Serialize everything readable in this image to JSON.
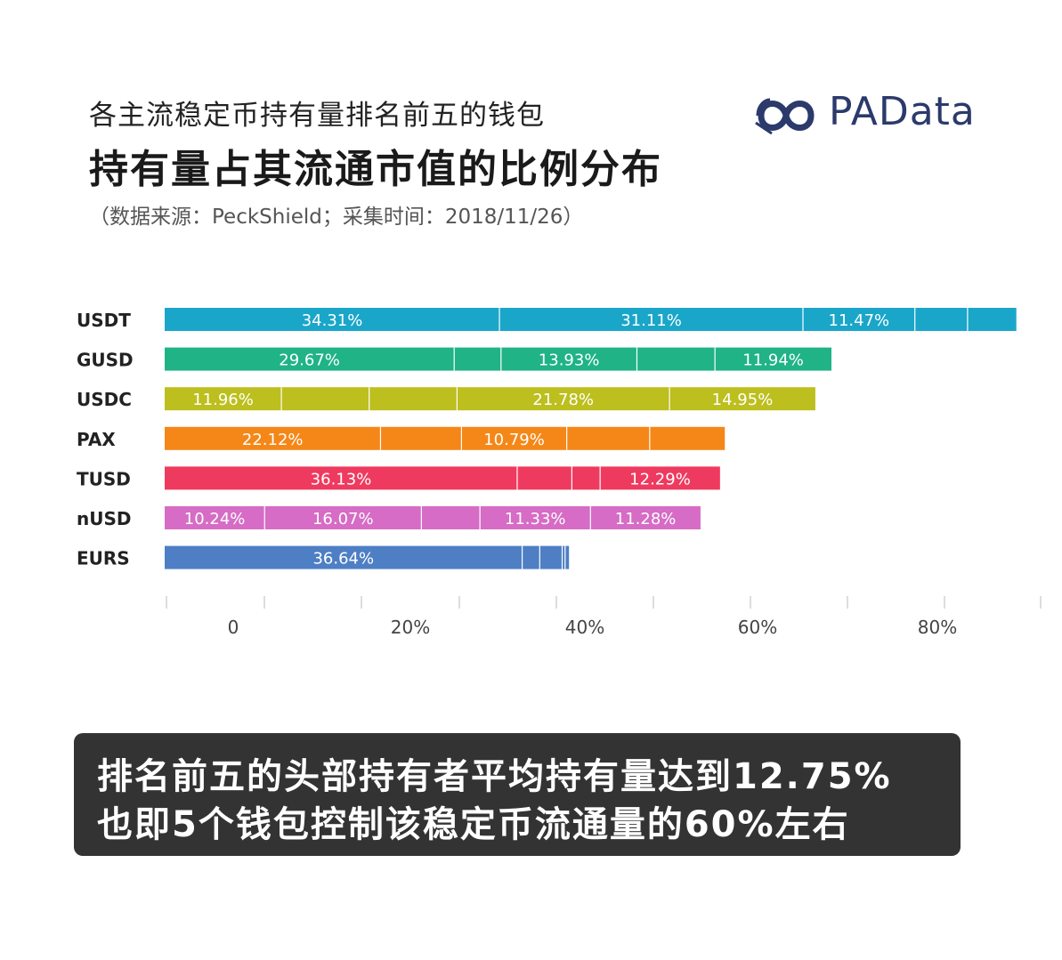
{
  "header": {
    "title_line1": "各主流稳定币持有量排名前五的钱包",
    "title_line2": "持有量占其流通市值的比例分布",
    "source": "（数据来源：PeckShield；采集时间：2018/11/26）"
  },
  "logo": {
    "text": "PAData",
    "icon": "infinity-logo-icon",
    "color": "#2b3a6b"
  },
  "chart_data": {
    "type": "bar",
    "orientation": "horizontal",
    "stacked": true,
    "categories": [
      "USDT",
      "GUSD",
      "USDC",
      "PAX",
      "TUSD",
      "nUSD",
      "EURS"
    ],
    "segments": [
      {
        "category": "USDT",
        "color": "#1aa6c9",
        "values": [
          34.31,
          31.11,
          11.47,
          5.4,
          5.0
        ],
        "labels": [
          "34.31%",
          "31.11%",
          "11.47%",
          "",
          ""
        ]
      },
      {
        "category": "GUSD",
        "color": "#1fb386",
        "values": [
          29.67,
          4.8,
          13.93,
          8.0,
          11.94
        ],
        "labels": [
          "29.67%",
          "",
          "13.93%",
          "",
          "11.94%"
        ]
      },
      {
        "category": "USDC",
        "color": "#bcbf1e",
        "values": [
          11.96,
          9.0,
          9.0,
          21.78,
          14.95
        ],
        "labels": [
          "11.96%",
          "",
          "",
          "21.78%",
          "14.95%"
        ]
      },
      {
        "category": "PAX",
        "color": "#f58718",
        "values": [
          22.12,
          8.3,
          10.79,
          8.5,
          7.7
        ],
        "labels": [
          "22.12%",
          "",
          "10.79%",
          "",
          ""
        ]
      },
      {
        "category": "TUSD",
        "color": "#ef3a5f",
        "values": [
          36.13,
          5.6,
          2.9,
          12.29
        ],
        "labels": [
          "36.13%",
          "",
          "",
          "12.29%"
        ]
      },
      {
        "category": "nUSD",
        "color": "#d66cc5",
        "values": [
          10.24,
          16.07,
          6.0,
          11.33,
          11.28
        ],
        "labels": [
          "10.24%",
          "16.07%",
          "",
          "11.33%",
          "11.28%"
        ]
      },
      {
        "category": "EURS",
        "color": "#4e7fc4",
        "values": [
          36.64,
          1.8,
          2.3,
          0.3,
          0.4
        ],
        "labels": [
          "36.64%",
          "",
          "",
          "",
          ""
        ]
      }
    ],
    "x_tick_labels": [
      "0",
      "20%",
      "40%",
      "60%",
      "80%"
    ],
    "xlim": [
      -7,
      90
    ]
  },
  "callout": {
    "line1": "排名前五的头部持有者平均持有量达到12.75%",
    "line2": "也即5个钱包控制该稳定币流通量的60%左右"
  }
}
